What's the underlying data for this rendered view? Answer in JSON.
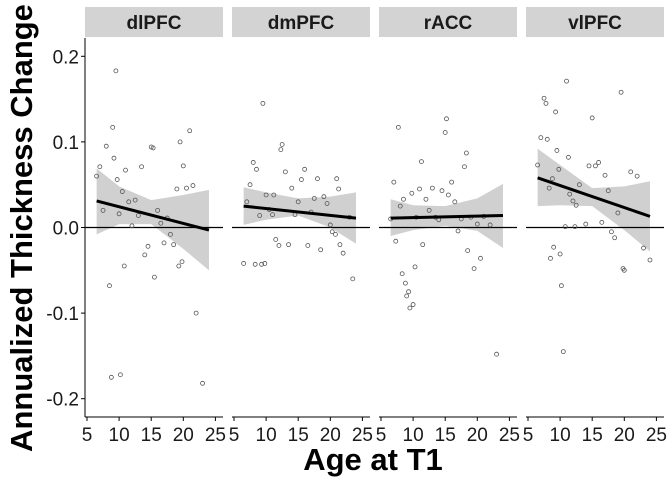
{
  "chart_data": {
    "type": "scatter",
    "xlabel": "Age at T1",
    "ylabel": "Annualized Thickness Change",
    "xlim": [
      5,
      26
    ],
    "ylim": [
      -0.21,
      0.22
    ],
    "x_ticks": [
      5,
      10,
      15,
      20,
      25
    ],
    "y_ticks": [
      -0.2,
      -0.1,
      0.0,
      0.1,
      0.2
    ],
    "y_tick_labels": [
      "-0.2",
      "-0.1",
      "0.0",
      "0.1",
      "0.2"
    ],
    "reference_line_y": 0,
    "colors": {
      "strip": "#d3d3d3",
      "points": "#555555",
      "fit_line": "#000000",
      "ci_band": "#c8c8c8",
      "zero_line": "#000000"
    },
    "panels": [
      {
        "label": "dlPFC",
        "fit": {
          "x": [
            6.5,
            24
          ],
          "y": [
            0.031,
            -0.003
          ]
        },
        "ci_upper": [
          [
            6.5,
            0.069
          ],
          [
            10,
            0.048
          ],
          [
            15,
            0.032
          ],
          [
            20,
            0.038
          ],
          [
            24,
            0.044
          ]
        ],
        "ci_lower": [
          [
            6.5,
            -0.008
          ],
          [
            10,
            0.004
          ],
          [
            15,
            0.004
          ],
          [
            20,
            -0.025
          ],
          [
            24,
            -0.05
          ]
        ],
        "points": [
          [
            6.5,
            0.06
          ],
          [
            7,
            0.071
          ],
          [
            7.5,
            0.02
          ],
          [
            8,
            0.095
          ],
          [
            8.5,
            -0.068
          ],
          [
            8.8,
            -0.175
          ],
          [
            9,
            0.117
          ],
          [
            9.2,
            0.081
          ],
          [
            9.5,
            0.183
          ],
          [
            9.7,
            0.056
          ],
          [
            10,
            0.016
          ],
          [
            10.2,
            -0.172
          ],
          [
            10.5,
            0.042
          ],
          [
            10.8,
            -0.045
          ],
          [
            11,
            0.067
          ],
          [
            11.5,
            0.03
          ],
          [
            12,
            0.002
          ],
          [
            12.5,
            0.032
          ],
          [
            13,
            0.014
          ],
          [
            13.5,
            0.071
          ],
          [
            14,
            -0.032
          ],
          [
            14.5,
            -0.022
          ],
          [
            15,
            0.094
          ],
          [
            15.3,
            0.093
          ],
          [
            15.5,
            -0.058
          ],
          [
            16,
            0.02
          ],
          [
            16.5,
            0.005
          ],
          [
            17,
            -0.018
          ],
          [
            17.5,
            0.011
          ],
          [
            18,
            -0.008
          ],
          [
            18.5,
            -0.02
          ],
          [
            19,
            0.045
          ],
          [
            19.3,
            -0.045
          ],
          [
            19.5,
            0.1
          ],
          [
            19.8,
            -0.04
          ],
          [
            20,
            0.072
          ],
          [
            20.5,
            0.046
          ],
          [
            21,
            0.113
          ],
          [
            21.5,
            0.049
          ],
          [
            22,
            -0.1
          ],
          [
            23,
            -0.182
          ]
        ]
      },
      {
        "label": "dmPFC",
        "fit": {
          "x": [
            6.5,
            24
          ],
          "y": [
            0.025,
            0.011
          ]
        },
        "ci_upper": [
          [
            6.5,
            0.047
          ],
          [
            10,
            0.041
          ],
          [
            15,
            0.034
          ],
          [
            20,
            0.036
          ],
          [
            24,
            0.041
          ]
        ],
        "ci_lower": [
          [
            6.5,
            0.003
          ],
          [
            10,
            0.009
          ],
          [
            15,
            0.014
          ],
          [
            20,
            0.0
          ],
          [
            24,
            -0.019
          ]
        ],
        "points": [
          [
            6.5,
            -0.042
          ],
          [
            7,
            0.03
          ],
          [
            7.5,
            0.05
          ],
          [
            8,
            0.076
          ],
          [
            8.3,
            -0.043
          ],
          [
            8.5,
            0.068
          ],
          [
            9,
            0.014
          ],
          [
            9.3,
            -0.043
          ],
          [
            9.5,
            0.145
          ],
          [
            9.8,
            -0.042
          ],
          [
            10,
            0.038
          ],
          [
            10.5,
            0.021
          ],
          [
            11,
            0.015
          ],
          [
            11.2,
            0.038
          ],
          [
            11.5,
            -0.014
          ],
          [
            12,
            -0.021
          ],
          [
            12.3,
            0.091
          ],
          [
            12.5,
            0.097
          ],
          [
            13,
            0.065
          ],
          [
            13.5,
            -0.02
          ],
          [
            14,
            0.046
          ],
          [
            14.5,
            0.015
          ],
          [
            15,
            0.03
          ],
          [
            15.5,
            0.056
          ],
          [
            16,
            0.068
          ],
          [
            16.5,
            -0.021
          ],
          [
            17,
            0.018
          ],
          [
            17.5,
            0.034
          ],
          [
            18,
            0.057
          ],
          [
            18.5,
            -0.026
          ],
          [
            19,
            0.036
          ],
          [
            19.5,
            0.028
          ],
          [
            20,
            0.003
          ],
          [
            20.3,
            -0.005
          ],
          [
            20.8,
            -0.008
          ],
          [
            21,
            0.057
          ],
          [
            21.3,
            0.045
          ],
          [
            21.5,
            -0.02
          ],
          [
            22,
            -0.03
          ],
          [
            23,
            0.012
          ],
          [
            23.5,
            -0.06
          ]
        ]
      },
      {
        "label": "rACC",
        "fit": {
          "x": [
            6.5,
            24
          ],
          "y": [
            0.011,
            0.014
          ]
        },
        "ci_upper": [
          [
            6.5,
            0.033
          ],
          [
            10,
            0.026
          ],
          [
            15,
            0.025
          ],
          [
            20,
            0.034
          ],
          [
            24,
            0.051
          ]
        ],
        "ci_lower": [
          [
            6.5,
            -0.01
          ],
          [
            10,
            -0.003
          ],
          [
            15,
            0.002
          ],
          [
            20,
            -0.004
          ],
          [
            24,
            -0.024
          ]
        ],
        "points": [
          [
            6.5,
            0.01
          ],
          [
            7,
            0.053
          ],
          [
            7.3,
            -0.016
          ],
          [
            7.7,
            0.117
          ],
          [
            8,
            0.025
          ],
          [
            8.3,
            -0.054
          ],
          [
            8.5,
            0.033
          ],
          [
            8.8,
            -0.065
          ],
          [
            9,
            -0.08
          ],
          [
            9.3,
            -0.075
          ],
          [
            9.5,
            -0.094
          ],
          [
            9.8,
            0.04
          ],
          [
            10,
            -0.09
          ],
          [
            10.3,
            -0.046
          ],
          [
            10.5,
            0.012
          ],
          [
            11,
            0.045
          ],
          [
            11.3,
            0.077
          ],
          [
            11.5,
            -0.02
          ],
          [
            12,
            0.033
          ],
          [
            12.5,
            0.02
          ],
          [
            13,
            0.046
          ],
          [
            13.5,
            0.012
          ],
          [
            14,
            0.009
          ],
          [
            14.5,
            0.043
          ],
          [
            15,
            0.111
          ],
          [
            15.2,
            0.127
          ],
          [
            15.5,
            0.038
          ],
          [
            16,
            0.053
          ],
          [
            16.5,
            0.03
          ],
          [
            17,
            -0.004
          ],
          [
            17.5,
            0.01
          ],
          [
            18,
            0.071
          ],
          [
            18.3,
            0.087
          ],
          [
            18.5,
            -0.027
          ],
          [
            19,
            0.012
          ],
          [
            19.5,
            -0.048
          ],
          [
            20,
            0.004
          ],
          [
            20.5,
            -0.036
          ],
          [
            21,
            0.013
          ],
          [
            22,
            0.003
          ],
          [
            23,
            -0.148
          ]
        ]
      },
      {
        "label": "vlPFC",
        "fit": {
          "x": [
            6.5,
            24
          ],
          "y": [
            0.058,
            0.013
          ]
        },
        "ci_upper": [
          [
            6.5,
            0.092
          ],
          [
            10,
            0.073
          ],
          [
            15,
            0.046
          ],
          [
            20,
            0.048
          ],
          [
            24,
            0.054
          ]
        ],
        "ci_lower": [
          [
            6.5,
            0.025
          ],
          [
            10,
            0.026
          ],
          [
            15,
            0.025
          ],
          [
            20,
            -0.003
          ],
          [
            24,
            -0.028
          ]
        ],
        "points": [
          [
            6.5,
            0.073
          ],
          [
            7,
            0.105
          ],
          [
            7.5,
            0.151
          ],
          [
            7.8,
            0.145
          ],
          [
            8,
            0.103
          ],
          [
            8.3,
            0.046
          ],
          [
            8.5,
            -0.036
          ],
          [
            8.8,
            0.057
          ],
          [
            9,
            -0.023
          ],
          [
            9.3,
            0.135
          ],
          [
            9.5,
            0.09
          ],
          [
            9.8,
            0.068
          ],
          [
            10,
            -0.031
          ],
          [
            10.2,
            -0.068
          ],
          [
            10.5,
            -0.145
          ],
          [
            10.8,
            0.001
          ],
          [
            11,
            0.171
          ],
          [
            11.3,
            0.082
          ],
          [
            11.5,
            0.039
          ],
          [
            12,
            0.031
          ],
          [
            12.3,
            0.001
          ],
          [
            12.5,
            0.026
          ],
          [
            13,
            0.05
          ],
          [
            14,
            0.004
          ],
          [
            14.5,
            0.072
          ],
          [
            15,
            0.128
          ],
          [
            15.5,
            0.072
          ],
          [
            16,
            0.076
          ],
          [
            16.5,
            0.006
          ],
          [
            17,
            0.061
          ],
          [
            17.5,
            0.043
          ],
          [
            18,
            -0.005
          ],
          [
            18.5,
            -0.012
          ],
          [
            19,
            0.017
          ],
          [
            19.5,
            0.158
          ],
          [
            19.8,
            -0.048
          ],
          [
            20,
            -0.05
          ],
          [
            21,
            0.065
          ],
          [
            22,
            0.06
          ],
          [
            23,
            -0.024
          ],
          [
            24,
            -0.038
          ]
        ]
      }
    ]
  }
}
